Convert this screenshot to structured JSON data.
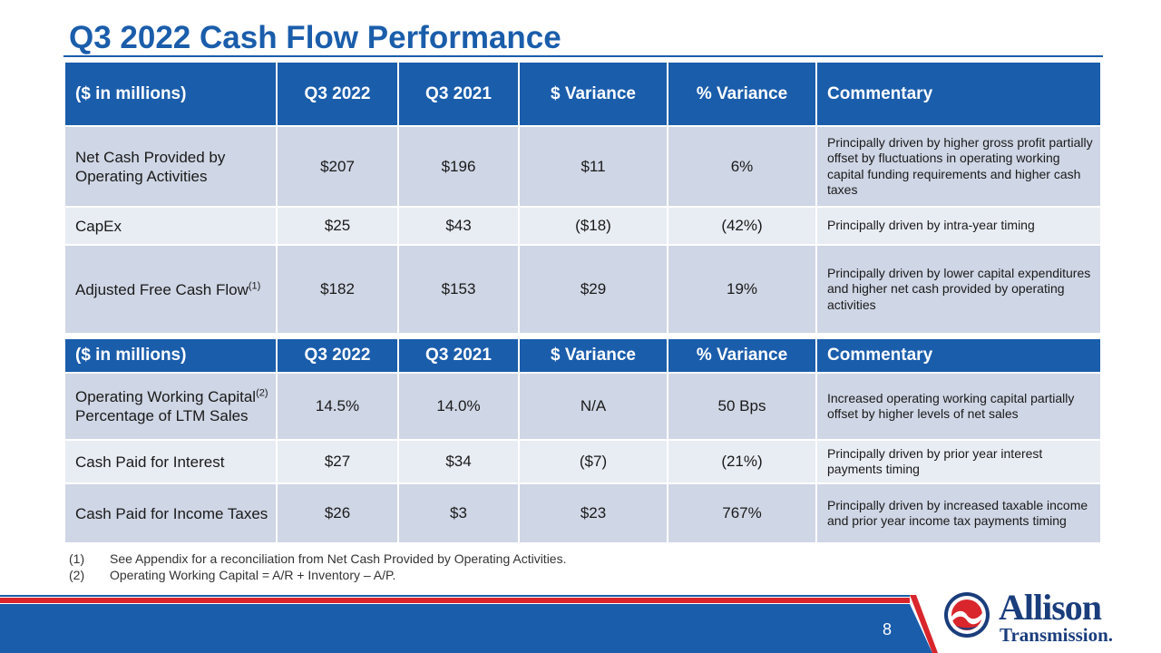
{
  "slide": {
    "title": "Q3 2022 Cash Flow Performance",
    "page_number": "8"
  },
  "table1": {
    "headers": [
      "($ in millions)",
      "Q3 2022",
      "Q3 2021",
      "$ Variance",
      "% Variance",
      "Commentary"
    ],
    "rows": [
      {
        "label": "Net Cash Provided by Operating Activities",
        "sup": "",
        "q3_2022": "$207",
        "q3_2021": "$196",
        "dollar_variance": "$11",
        "pct_variance": "6%",
        "commentary": "Principally driven by higher gross profit partially offset by fluctuations in operating working capital funding requirements and higher cash taxes"
      },
      {
        "label": "CapEx",
        "sup": "",
        "q3_2022": "$25",
        "q3_2021": "$43",
        "dollar_variance": "($18)",
        "pct_variance": "(42%)",
        "commentary": "Principally driven by intra-year timing"
      },
      {
        "label": "Adjusted Free Cash Flow",
        "sup": "(1)",
        "q3_2022": "$182",
        "q3_2021": "$153",
        "dollar_variance": "$29",
        "pct_variance": "19%",
        "commentary": "Principally driven by lower capital expenditures and higher net cash provided by operating activities"
      }
    ]
  },
  "table2": {
    "headers": [
      "($ in millions)",
      "Q3 2022",
      "Q3 2021",
      "$ Variance",
      "% Variance",
      "Commentary"
    ],
    "rows": [
      {
        "label_pre": "Operating Working Capital",
        "sup": "(2)",
        "label_post": " Percentage of LTM Sales",
        "q3_2022": "14.5%",
        "q3_2021": "14.0%",
        "dollar_variance": "N/A",
        "pct_variance": "50 Bps",
        "commentary": "Increased operating working capital partially offset by higher levels of net sales"
      },
      {
        "label": "Cash Paid for Interest",
        "q3_2022": "$27",
        "q3_2021": "$34",
        "dollar_variance": "($7)",
        "pct_variance": "(21%)",
        "commentary": "Principally driven by prior year interest payments timing"
      },
      {
        "label": "Cash Paid for Income Taxes",
        "q3_2022": "$26",
        "q3_2021": "$3",
        "dollar_variance": "$23",
        "pct_variance": "767%",
        "commentary": "Principally driven by increased taxable income and prior year income tax payments timing"
      }
    ]
  },
  "footnotes": [
    {
      "num": "(1)",
      "text": "See Appendix for a reconciliation from Net Cash Provided by Operating Activities."
    },
    {
      "num": "(2)",
      "text": "Operating Working Capital = A/R + Inventory – A/P."
    }
  ],
  "logo": {
    "line1": "Allison",
    "line2": "Transmission."
  },
  "colors": {
    "brand_blue": "#1a5dab",
    "row_dark": "#cfd6e5",
    "row_light": "#e8ecf3",
    "accent_red": "#d9262c",
    "logo_navy": "#1a3d7c"
  }
}
